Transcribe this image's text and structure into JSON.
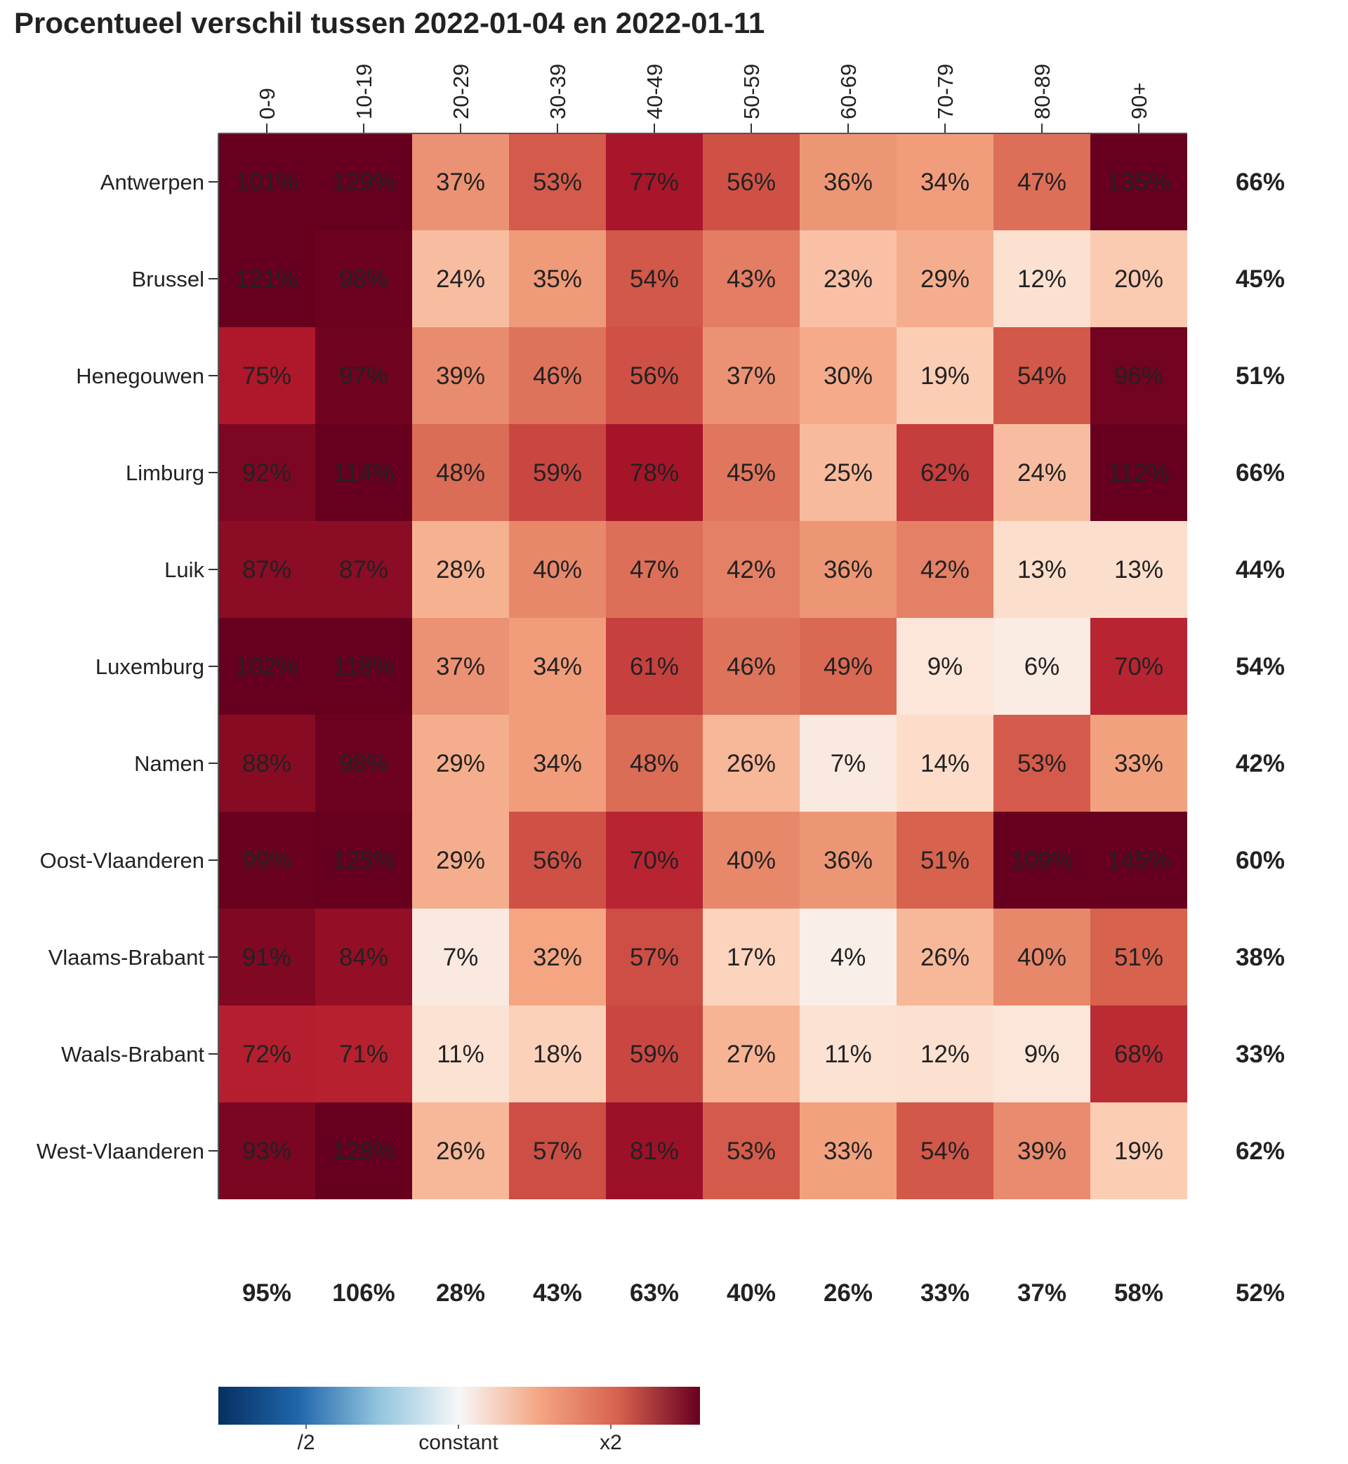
{
  "chart_data": {
    "type": "heatmap",
    "title": "Procentueel verschil tussen 2022-01-04 en 2022-01-11",
    "columns": [
      "0-9",
      "10-19",
      "20-29",
      "30-39",
      "40-49",
      "50-59",
      "60-69",
      "70-79",
      "80-89",
      "90+"
    ],
    "rows": [
      "Antwerpen",
      "Brussel",
      "Henegouwen",
      "Limburg",
      "Luik",
      "Luxemburg",
      "Namen",
      "Oost-Vlaanderen",
      "Vlaams-Brabant",
      "Waals-Brabant",
      "West-Vlaanderen"
    ],
    "values": [
      [
        101,
        129,
        37,
        53,
        77,
        56,
        36,
        34,
        47,
        135
      ],
      [
        121,
        98,
        24,
        35,
        54,
        43,
        23,
        29,
        12,
        20
      ],
      [
        75,
        97,
        39,
        46,
        56,
        37,
        30,
        19,
        54,
        96
      ],
      [
        92,
        114,
        48,
        59,
        78,
        45,
        25,
        62,
        24,
        112
      ],
      [
        87,
        87,
        28,
        40,
        47,
        42,
        36,
        42,
        13,
        13
      ],
      [
        102,
        118,
        37,
        34,
        61,
        46,
        49,
        9,
        6,
        70
      ],
      [
        88,
        98,
        29,
        34,
        48,
        26,
        7,
        14,
        53,
        33
      ],
      [
        99,
        125,
        29,
        56,
        70,
        40,
        36,
        51,
        109,
        145
      ],
      [
        91,
        84,
        7,
        32,
        57,
        17,
        4,
        26,
        40,
        51
      ],
      [
        72,
        71,
        11,
        18,
        59,
        27,
        11,
        12,
        9,
        68
      ],
      [
        93,
        128,
        26,
        57,
        81,
        53,
        33,
        54,
        39,
        19
      ]
    ],
    "row_totals": [
      66,
      45,
      51,
      66,
      44,
      54,
      42,
      60,
      38,
      33,
      62
    ],
    "column_totals": [
      95,
      106,
      28,
      43,
      63,
      40,
      26,
      33,
      37,
      58
    ],
    "grand_total": 52,
    "unit": "%",
    "legend": {
      "labels": [
        "/2",
        "constant",
        "x2"
      ],
      "colors": [
        "#053061",
        "#2166ac",
        "#92c5de",
        "#f7f7f7",
        "#f4a582",
        "#d6604d",
        "#67001f"
      ]
    }
  }
}
